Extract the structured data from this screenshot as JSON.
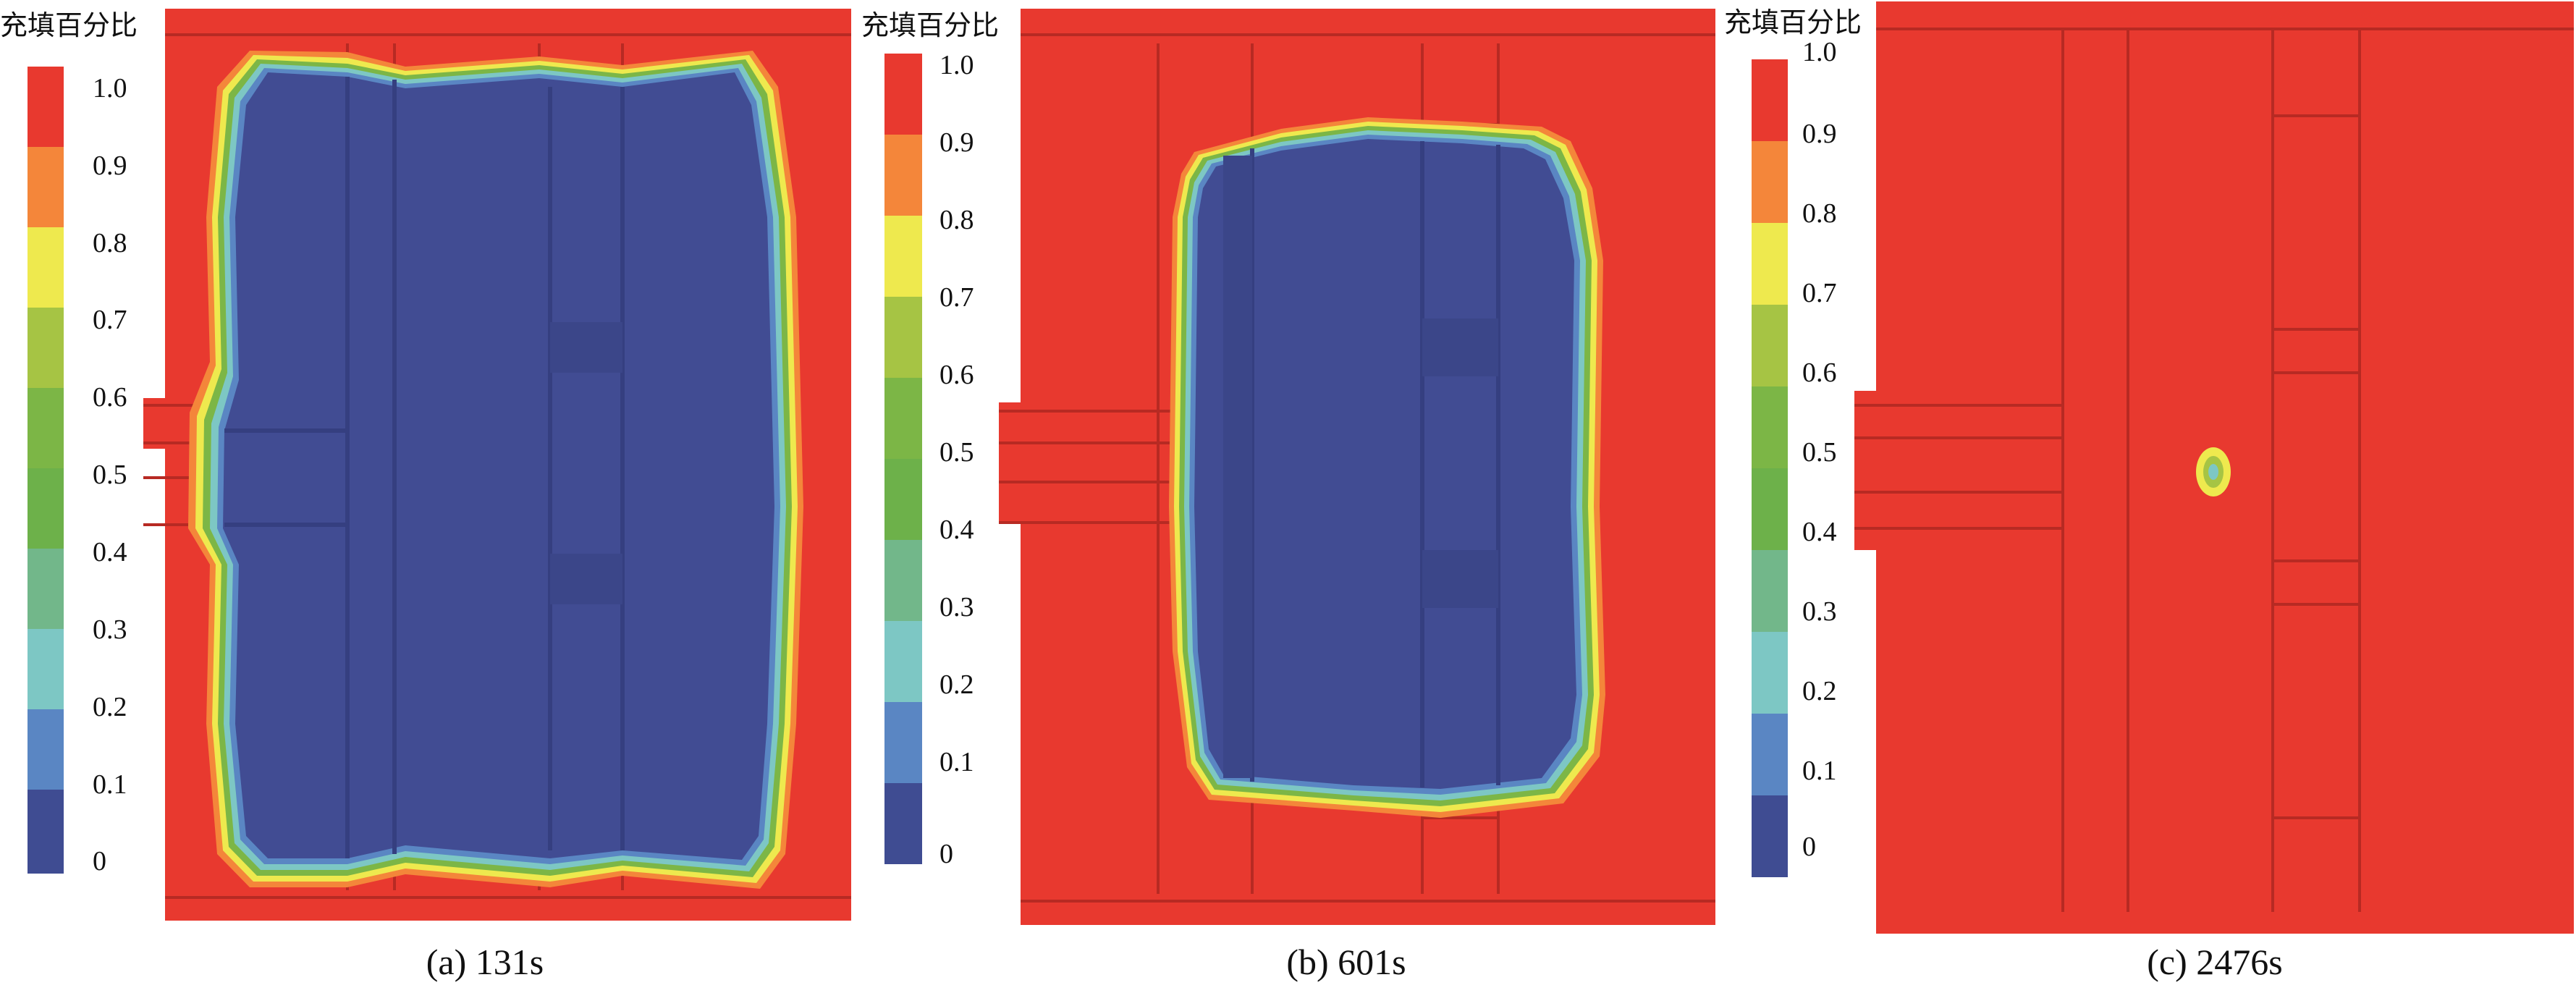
{
  "legend": {
    "title": "充填百分比",
    "ticks": [
      "1.0",
      "0.9",
      "0.8",
      "0.7",
      "0.6",
      "0.5",
      "0.4",
      "0.3",
      "0.2",
      "0.1",
      "0"
    ],
    "colors": [
      "#e8392f",
      "#f4863a",
      "#eee94e",
      "#a6c444",
      "#7cb646",
      "#6db14a",
      "#72b78a",
      "#7dc7c4",
      "#5a86c3",
      "#3f4c92"
    ]
  },
  "panels": [
    {
      "caption": "(a) 131s"
    },
    {
      "caption": "(b) 601s"
    },
    {
      "caption": "(c) 2476s"
    }
  ],
  "palette": {
    "full": "#e8392f",
    "empty": "#414c93",
    "edge_dark": "#b72a23"
  }
}
